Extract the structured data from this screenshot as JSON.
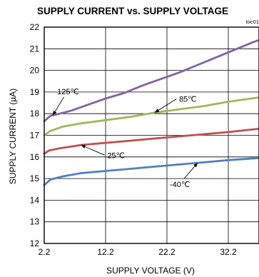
{
  "chart_data": {
    "type": "line",
    "title": "SUPPLY CURRENT vs. SUPPLY VOLTAGE",
    "figure_code": "toc01",
    "xlabel": "SUPPLY VOLTAGE (V)",
    "ylabel": "SUPPLY CURRENT (µA)",
    "xlim": [
      2.2,
      37.2
    ],
    "ylim": [
      12,
      22
    ],
    "xticks": [
      "2.2",
      "12.2",
      "22.2",
      "32.2"
    ],
    "xtick_values": [
      2.2,
      12.2,
      22.2,
      32.2
    ],
    "yticks": [
      "12",
      "13",
      "14",
      "15",
      "16",
      "17",
      "18",
      "19",
      "20",
      "21",
      "22"
    ],
    "ytick_values": [
      12,
      13,
      14,
      15,
      16,
      17,
      18,
      19,
      20,
      21,
      22
    ],
    "grid": true,
    "series": [
      {
        "name": "125℃",
        "color": "#8064a2",
        "x": [
          2.2,
          3.2,
          4.7,
          6.7,
          9.2,
          12.2,
          15.2,
          18.2,
          21.2,
          24.2,
          27.2,
          30.2,
          33.2,
          36.2,
          37.2
        ],
        "y": [
          17.65,
          17.9,
          18.0,
          18.15,
          18.4,
          18.7,
          18.95,
          19.3,
          19.6,
          19.9,
          20.25,
          20.6,
          20.95,
          21.3,
          21.4
        ]
      },
      {
        "name": "85℃",
        "color": "#9bbb59",
        "x": [
          2.2,
          3.2,
          5.2,
          8.2,
          12.2,
          16.2,
          20.2,
          24.2,
          28.2,
          32.2,
          37.2
        ],
        "y": [
          17.0,
          17.2,
          17.4,
          17.55,
          17.7,
          17.85,
          18.05,
          18.2,
          18.35,
          18.55,
          18.75
        ]
      },
      {
        "name": "25℃",
        "color": "#c0504d",
        "x": [
          2.2,
          3.0,
          4.7,
          8.2,
          12.2,
          16.2,
          20.2,
          24.2,
          28.2,
          32.2,
          37.2
        ],
        "y": [
          16.15,
          16.3,
          16.4,
          16.55,
          16.65,
          16.75,
          16.85,
          16.95,
          17.05,
          17.15,
          17.3
        ]
      },
      {
        "name": "-40℃",
        "color": "#4f81bd",
        "x": [
          2.2,
          3.2,
          5.2,
          8.2,
          12.2,
          16.2,
          20.2,
          24.2,
          28.2,
          32.2,
          37.2
        ],
        "y": [
          14.7,
          14.95,
          15.1,
          15.25,
          15.35,
          15.45,
          15.55,
          15.65,
          15.75,
          15.85,
          15.95
        ]
      }
    ],
    "annotations": [
      {
        "text": "125℃",
        "series": 0,
        "at_x": 3.6,
        "label_x": 6.1,
        "label_y": 18.9
      },
      {
        "text": "85℃",
        "series": 1,
        "at_x": 20.2,
        "label_x": 25.6,
        "label_y": 18.55
      },
      {
        "text": "25℃",
        "series": 2,
        "at_x": 8.2,
        "label_x": 13.9,
        "label_y": 15.95
      },
      {
        "text": "-40℃",
        "series": 3,
        "at_x": 27.2,
        "label_x": 24.3,
        "label_y": 14.6
      }
    ]
  }
}
